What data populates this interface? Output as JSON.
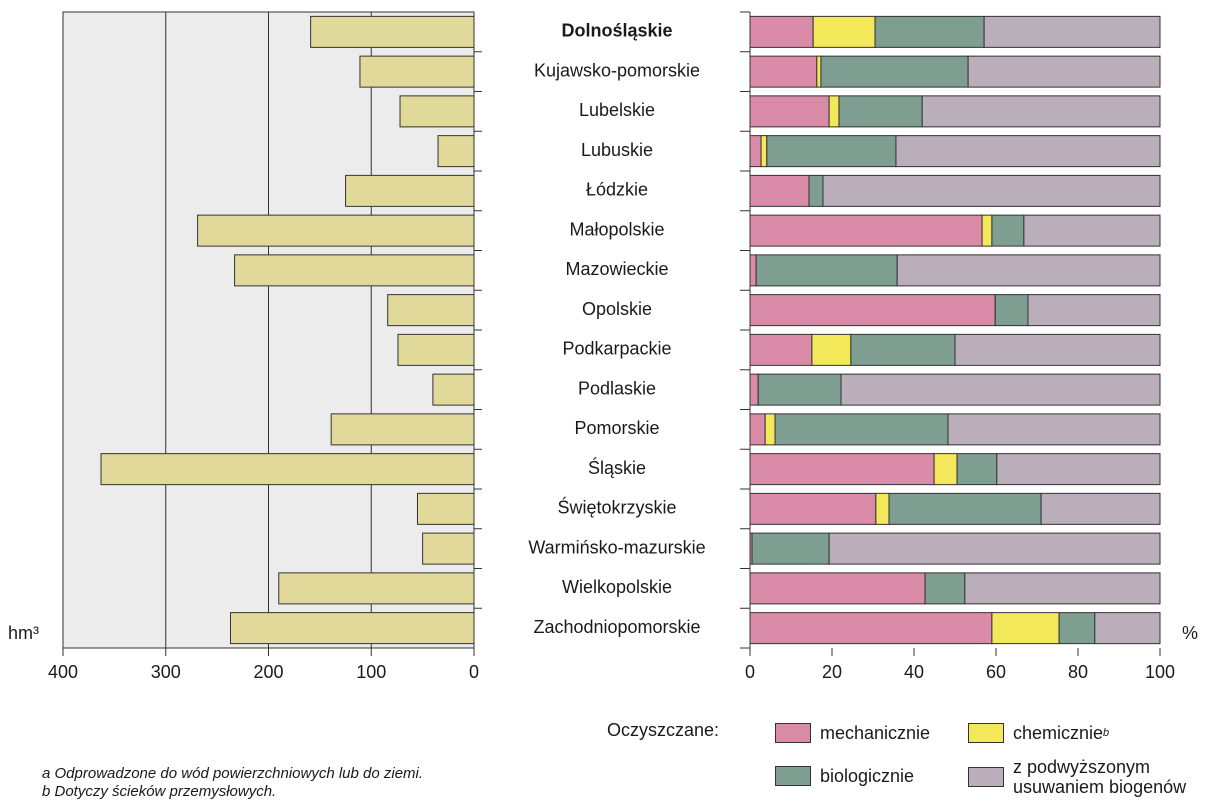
{
  "chart_data": [
    {
      "type": "bar",
      "orientation": "horizontal",
      "x_label": "hm³",
      "color": "#e0d99a",
      "background": "#ececec",
      "grid": true,
      "highlight": 0,
      "categories": [
        "Dolnośląskie",
        "Kujawsko-pomorskie",
        "Lubelskie",
        "Lubuskie",
        "Łódzkie",
        "Małopolskie",
        "Mazowieckie",
        "Opolskie",
        "Podkarpackie",
        "Podlaskie",
        "Pomorskie",
        "Śląskie",
        "Świętokrzyskie",
        "Warmińsko-mazurskie",
        "Wielkopolskie",
        "Zachodniopomorskie"
      ],
      "values": [
        159,
        111,
        72,
        35,
        125,
        269,
        233,
        84,
        74,
        40,
        139,
        363,
        55,
        50,
        190,
        237
      ],
      "xlim": [
        400,
        0
      ],
      "xticks": [
        400,
        300,
        200,
        100,
        0
      ]
    },
    {
      "type": "stacked_bar",
      "orientation": "horizontal",
      "x_label": "%",
      "legend_title": "Oczyszczane:",
      "legend_note": "b",
      "xlim": [
        0,
        100
      ],
      "xticks": [
        0,
        20,
        40,
        60,
        80,
        100
      ],
      "series": [
        {
          "name": "mechanicznie",
          "color": "#d98ba8",
          "values": [
            15.4,
            16.3,
            19.3,
            2.7,
            14.4,
            56.6,
            1.5,
            59.8,
            15.1,
            2.0,
            3.7,
            44.9,
            30.7,
            0.5,
            42.7,
            59.0
          ]
        },
        {
          "name": "chemicznie",
          "color": "#f2e85a",
          "values": [
            15.1,
            1.0,
            2.4,
            1.4,
            0,
            2.4,
            0,
            0,
            9.5,
            0,
            2.4,
            5.6,
            3.2,
            0,
            0,
            16.4
          ]
        },
        {
          "name": "biologicznie",
          "color": "#7e9e91",
          "values": [
            26.6,
            35.9,
            20.3,
            31.5,
            3.4,
            7.8,
            34.4,
            8.0,
            25.4,
            20.2,
            42.2,
            9.7,
            37.1,
            18.8,
            9.7,
            8.7
          ]
        },
        {
          "name": "z podwyższonym usuwaniem biogenów",
          "color": "#baaebb",
          "values": [
            42.9,
            46.8,
            58.0,
            64.4,
            82.2,
            33.2,
            64.1,
            32.2,
            50.0,
            77.8,
            51.7,
            39.8,
            29.0,
            80.7,
            47.6,
            15.9
          ]
        }
      ]
    }
  ],
  "notes": [
    "a Odprowadzone do wód powierzchniowych lub do ziemi.",
    "b Dotyczy ścieków przemysłowych."
  ]
}
